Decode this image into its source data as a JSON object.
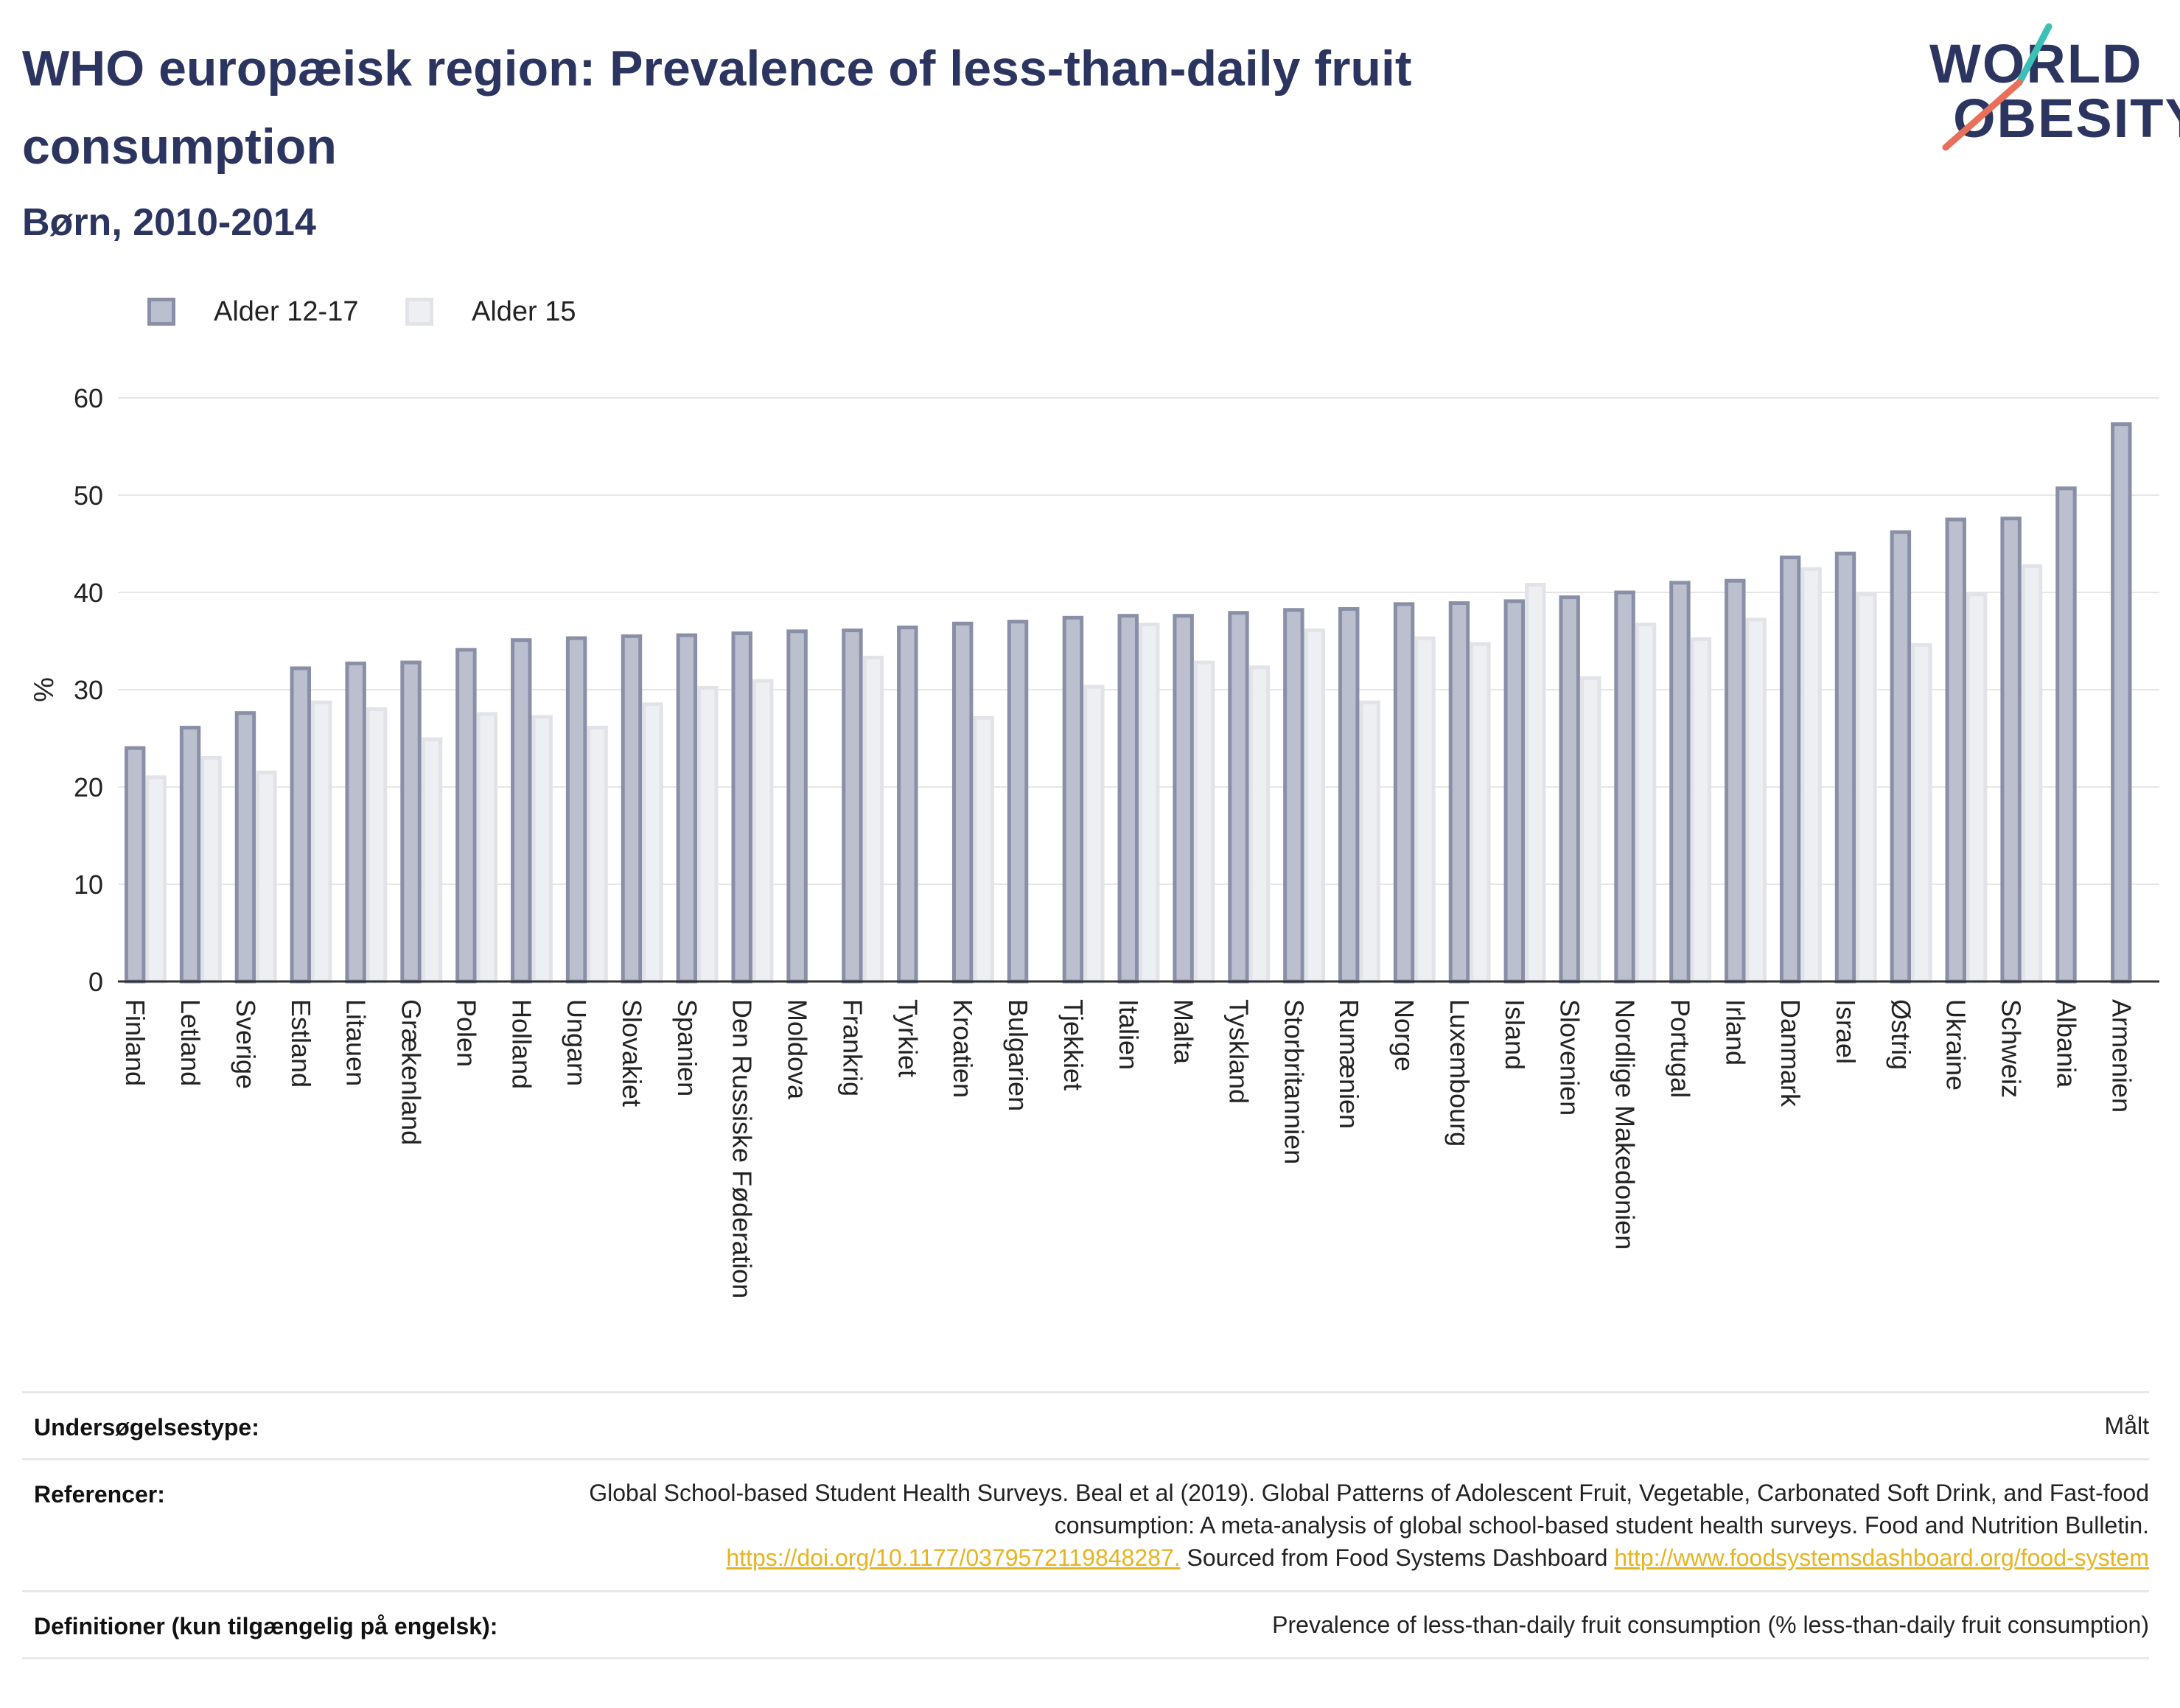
{
  "header": {
    "title": "WHO europæisk region: Prevalence of less-than-daily fruit consumption",
    "subtitle": "Børn, 2010-2014"
  },
  "logo": {
    "line1": "WORLD",
    "line2": "OBESITY"
  },
  "colors": {
    "title": "#2b355f",
    "series1_fill": "#bcbfcd",
    "series1_stroke": "#8a8fa8",
    "series2_fill": "#eeeff2",
    "series2_stroke": "#e2e3e8",
    "logo_teal": "#3bbfb6",
    "logo_coral": "#e8705a",
    "link": "#e6b422"
  },
  "chart_data": {
    "type": "bar",
    "title": "WHO europæisk region: Prevalence of less-than-daily fruit consumption",
    "subtitle": "Børn, 2010-2014",
    "ylabel": "%",
    "ylim": [
      0,
      60
    ],
    "yticks": [
      0,
      10,
      20,
      30,
      40,
      50,
      60
    ],
    "grid": true,
    "legend_position": "top-left",
    "categories": [
      "Finland",
      "Letland",
      "Sverige",
      "Estland",
      "Litauen",
      "Grækenland",
      "Polen",
      "Holland",
      "Ungarn",
      "Slovakiet",
      "Spanien",
      "Den Russiske Føderation",
      "Moldova",
      "Frankrig",
      "Tyrkiet",
      "Kroatien",
      "Bulgarien",
      "Tjekkiet",
      "Italien",
      "Malta",
      "Tyskland",
      "Storbritannien",
      "Rumænien",
      "Norge",
      "Luxembourg",
      "Island",
      "Slovenien",
      "Nordlige Makedonien",
      "Portugal",
      "Irland",
      "Danmark",
      "Israel",
      "Østrig",
      "Ukraine",
      "Schweiz",
      "Albania",
      "Armenien"
    ],
    "series": [
      {
        "name": "Alder 12-17",
        "values": [
          24.0,
          26.1,
          27.6,
          32.2,
          32.7,
          32.8,
          34.1,
          35.1,
          35.3,
          35.5,
          35.6,
          35.8,
          36.0,
          36.1,
          36.4,
          36.8,
          37.0,
          37.4,
          37.6,
          37.6,
          37.9,
          38.2,
          38.3,
          38.8,
          38.9,
          39.1,
          39.5,
          40.0,
          41.0,
          41.2,
          43.6,
          44.0,
          46.2,
          47.5,
          47.6,
          50.7,
          57.3
        ]
      },
      {
        "name": "Alder 15",
        "values": [
          21.0,
          23.0,
          21.5,
          28.7,
          28.0,
          24.9,
          27.5,
          27.2,
          26.1,
          28.5,
          30.2,
          30.9,
          null,
          33.3,
          null,
          27.1,
          null,
          30.3,
          36.7,
          32.8,
          32.3,
          36.1,
          28.7,
          35.3,
          34.7,
          40.8,
          31.2,
          36.7,
          35.2,
          37.2,
          42.4,
          39.8,
          34.6,
          39.8,
          42.7,
          null,
          null
        ]
      }
    ]
  },
  "footer": {
    "survey_type_label": "Undersøgelsestype:",
    "survey_type_value": "Målt",
    "references_label": "Referencer:",
    "references_text": "Global School-based Student Health Surveys. Beal et al (2019). Global Patterns of Adolescent Fruit, Vegetable, Carbonated Soft Drink, and Fast-food consumption: A meta-analysis of global school-based student health surveys. Food and Nutrition Bulletin.",
    "references_link1": "https://doi.org/10.1177/0379572119848287.",
    "references_mid": " Sourced from Food Systems Dashboard ",
    "references_link2": "http://www.foodsystemsdashboard.org/food-system",
    "definitions_label": "Definitioner (kun tilgængelig på engelsk):",
    "definitions_value": "Prevalence of less-than-daily fruit consumption (% less-than-daily fruit consumption)"
  }
}
